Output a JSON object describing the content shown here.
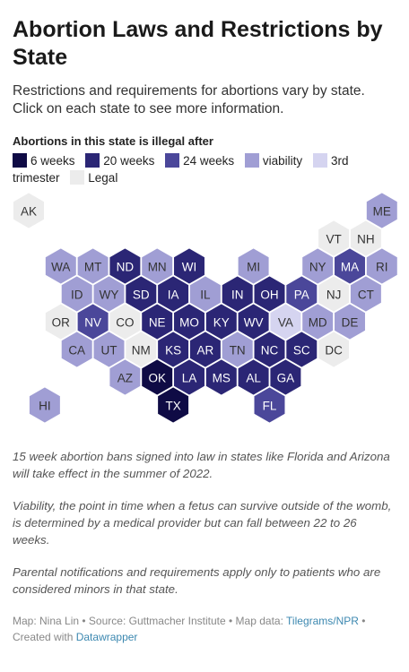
{
  "header": {
    "title": "Abortion Laws and Restrictions by State",
    "subtitle": "Restrictions and requirements for abortions vary by state. Click on each state to see more information."
  },
  "legend": {
    "title": "Abortions in this state is illegal after",
    "items": [
      {
        "label": "6 weeks",
        "color": "#0f0b45"
      },
      {
        "label": "20 weeks",
        "color": "#2b2675"
      },
      {
        "label": "24 weeks",
        "color": "#4b479a"
      },
      {
        "label": "viability",
        "color": "#a09ed4"
      },
      {
        "label": "3rd trimester",
        "color": "#d5d4f0"
      },
      {
        "label": "Legal",
        "color": "#ececec"
      }
    ]
  },
  "states": [
    {
      "label": "AK",
      "category": 5
    },
    {
      "label": "ME",
      "category": 3
    },
    {
      "label": "VT",
      "category": 5
    },
    {
      "label": "NH",
      "category": 5
    },
    {
      "label": "WA",
      "category": 3
    },
    {
      "label": "MT",
      "category": 3
    },
    {
      "label": "ND",
      "category": 1
    },
    {
      "label": "MN",
      "category": 3
    },
    {
      "label": "WI",
      "category": 1
    },
    {
      "label": "MI",
      "category": 3
    },
    {
      "label": "NY",
      "category": 3
    },
    {
      "label": "MA",
      "category": 2
    },
    {
      "label": "RI",
      "category": 3
    },
    {
      "label": "ID",
      "category": 3
    },
    {
      "label": "WY",
      "category": 3
    },
    {
      "label": "SD",
      "category": 1
    },
    {
      "label": "IA",
      "category": 1
    },
    {
      "label": "IL",
      "category": 3
    },
    {
      "label": "IN",
      "category": 1
    },
    {
      "label": "OH",
      "category": 1
    },
    {
      "label": "PA",
      "category": 2
    },
    {
      "label": "NJ",
      "category": 5
    },
    {
      "label": "CT",
      "category": 3
    },
    {
      "label": "OR",
      "category": 5
    },
    {
      "label": "NV",
      "category": 2
    },
    {
      "label": "CO",
      "category": 5
    },
    {
      "label": "NE",
      "category": 1
    },
    {
      "label": "MO",
      "category": 1
    },
    {
      "label": "KY",
      "category": 1
    },
    {
      "label": "WV",
      "category": 1
    },
    {
      "label": "VA",
      "category": 4
    },
    {
      "label": "MD",
      "category": 3
    },
    {
      "label": "DE",
      "category": 3
    },
    {
      "label": "CA",
      "category": 3
    },
    {
      "label": "UT",
      "category": 3
    },
    {
      "label": "NM",
      "category": 5
    },
    {
      "label": "KS",
      "category": 1
    },
    {
      "label": "AR",
      "category": 1
    },
    {
      "label": "TN",
      "category": 3
    },
    {
      "label": "NC",
      "category": 1
    },
    {
      "label": "SC",
      "category": 1
    },
    {
      "label": "DC",
      "category": 5
    },
    {
      "label": "AZ",
      "category": 3
    },
    {
      "label": "OK",
      "category": 0
    },
    {
      "label": "LA",
      "category": 1
    },
    {
      "label": "MS",
      "category": 1
    },
    {
      "label": "AL",
      "category": 1
    },
    {
      "label": "GA",
      "category": 1
    },
    {
      "label": "HI",
      "category": 3
    },
    {
      "label": "TX",
      "category": 0
    },
    {
      "label": "FL",
      "category": 2
    }
  ],
  "notes": [
    "15 week abortion bans signed into law in states like Florida and Arizona will take effect in the summer of 2022.",
    "Viability, the point in time when a fetus can survive outside of the womb, is determined by a medical provider but can fall between 22 to 26 weeks.",
    "Parental notifications and requirements apply only to patients who are considered minors in that state."
  ],
  "footer": {
    "map_by": "Map: Nina Lin",
    "source": "Source: Guttmacher Institute",
    "map_data": "Map data:",
    "map_data_link": "Tilegrams/NPR",
    "created": "Created with",
    "created_link": "Datawrapper"
  }
}
